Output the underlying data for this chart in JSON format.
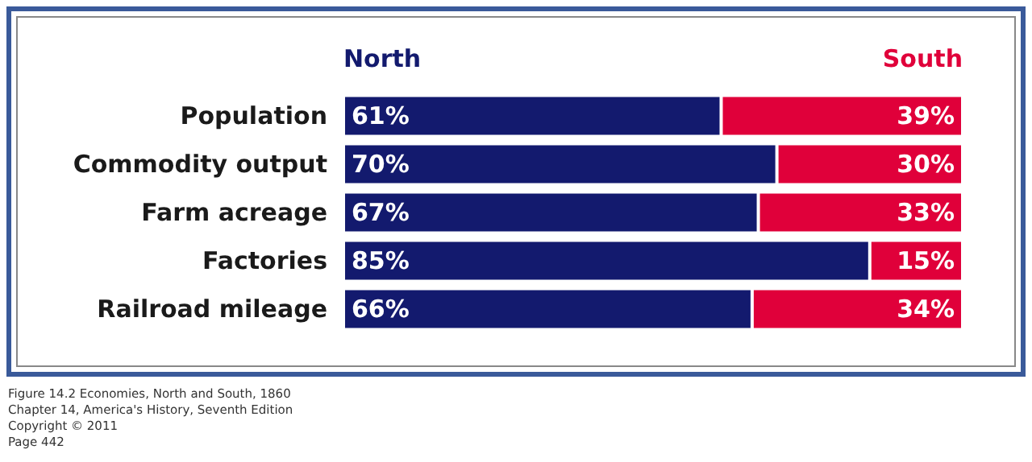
{
  "chart_data": {
    "type": "bar",
    "orientation": "horizontal",
    "stacked": true,
    "xlim": [
      0,
      100
    ],
    "tick_labels": "y",
    "legend": false,
    "categories": [
      "Population",
      "Commodity output",
      "Farm acreage",
      "Factories",
      "Railroad mileage"
    ],
    "series": [
      {
        "name": "North",
        "color": "#131a6e",
        "values": [
          61,
          70,
          67,
          85,
          66
        ],
        "value_labels": [
          "61%",
          "70%",
          "67%",
          "85%",
          "66%"
        ]
      },
      {
        "name": "South",
        "color": "#e0003a",
        "values": [
          39,
          30,
          33,
          15,
          34
        ],
        "value_labels": [
          "39%",
          "30%",
          "33%",
          "15%",
          "34%"
        ]
      }
    ],
    "annotations": [
      "Figure 14.2 Economies, North and South, 1860",
      "Chapter 14, America's History, Seventh Edition",
      "Copyright © 2011",
      "Page 442"
    ]
  }
}
